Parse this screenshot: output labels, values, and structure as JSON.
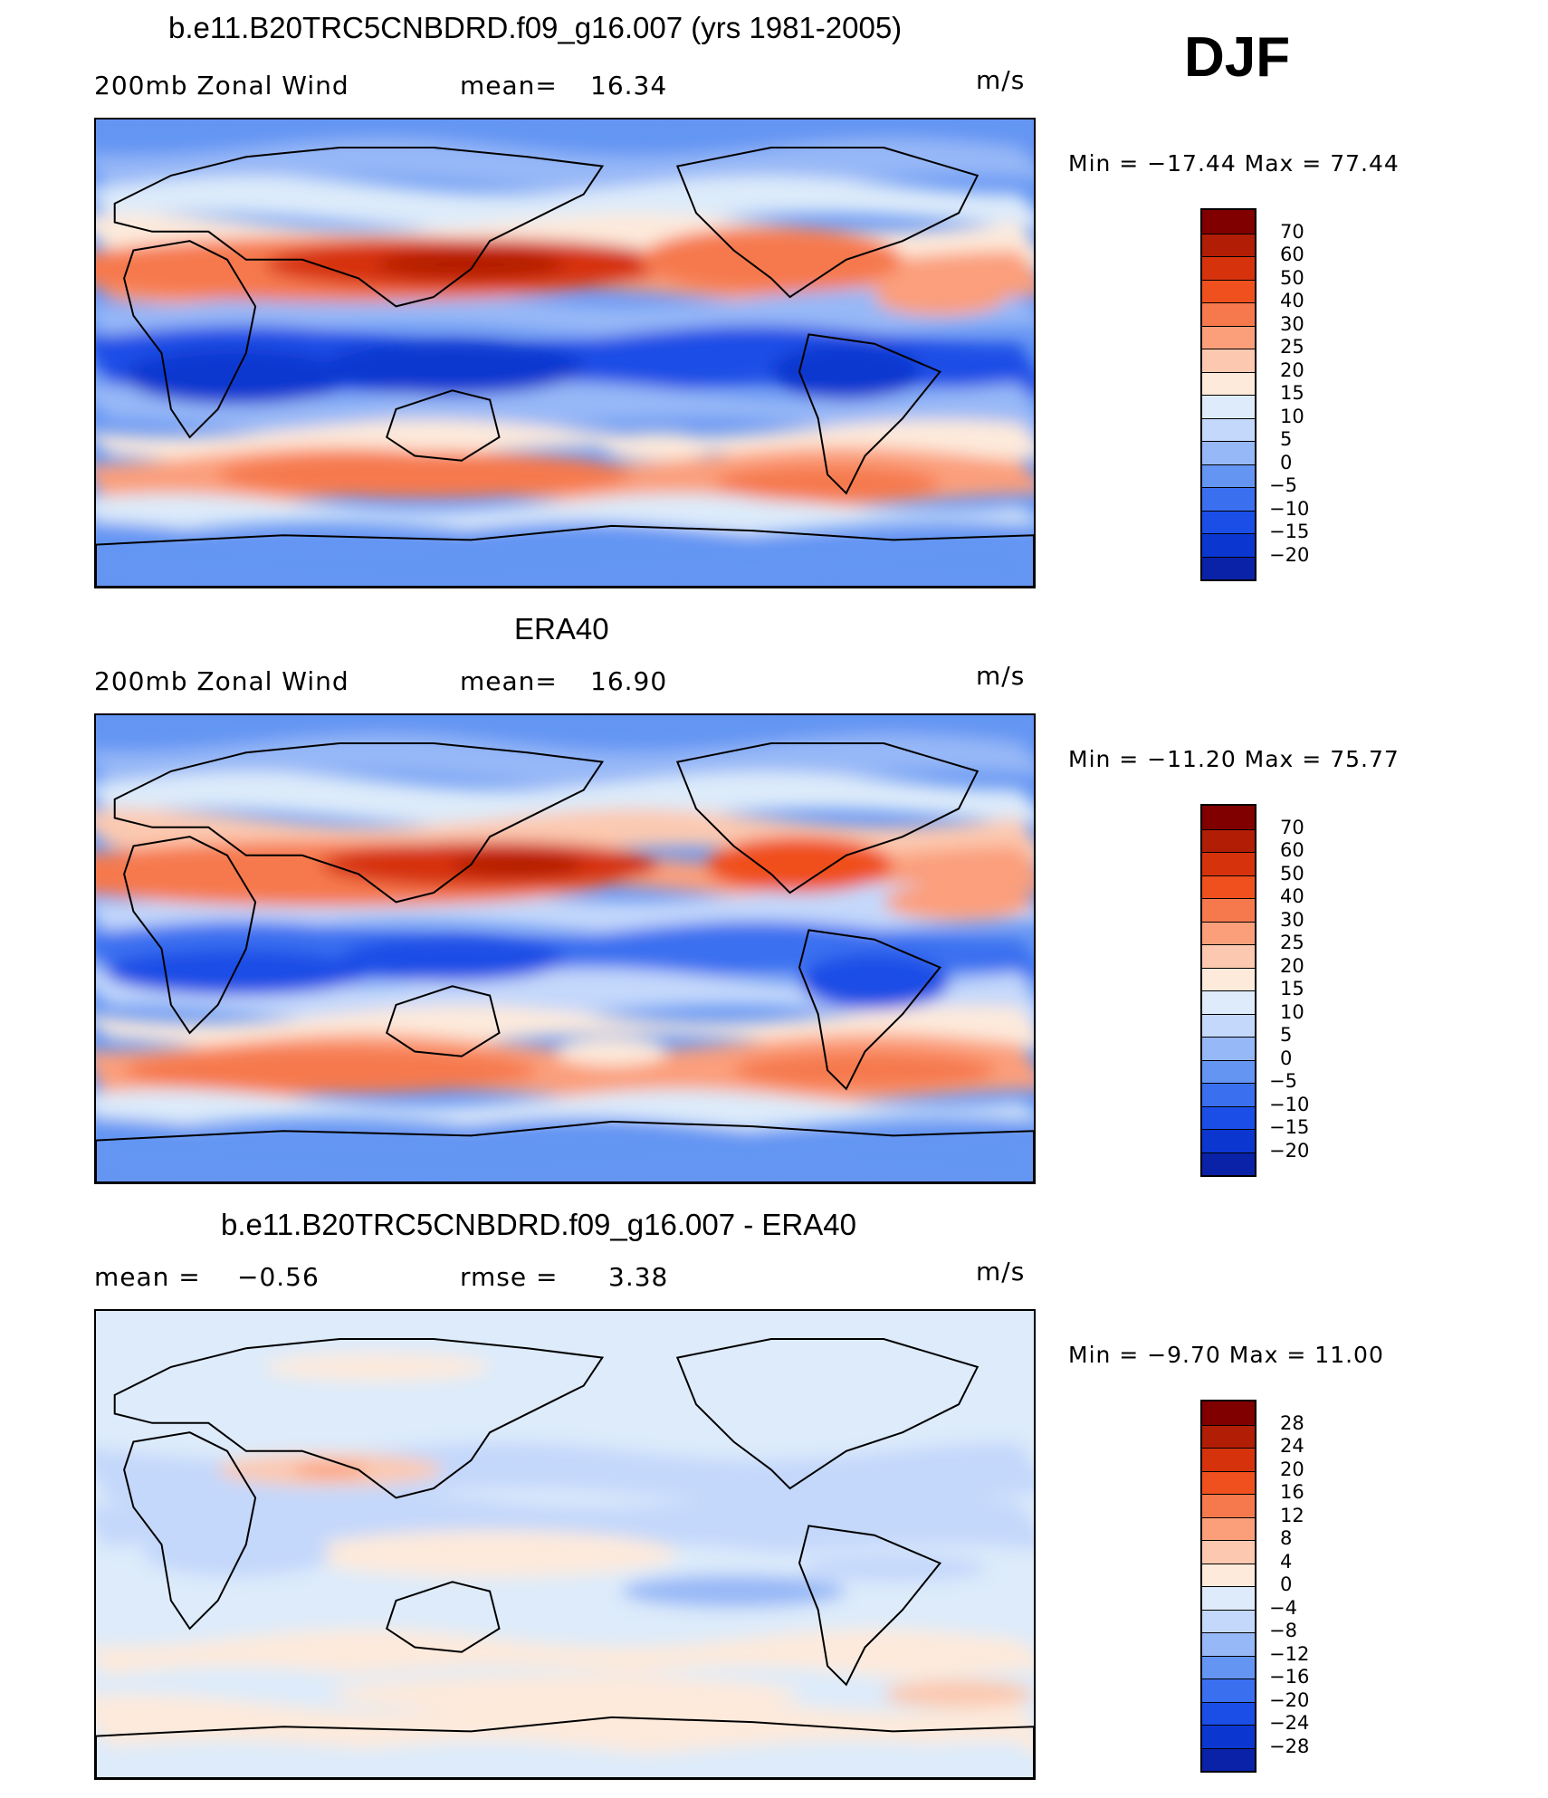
{
  "season": "DJF",
  "units": "m/s",
  "palette": {
    "scale": [
      "#00007f",
      "#0a22a8",
      "#0b37d0",
      "#1a4ee6",
      "#3a6ff0",
      "#6495f3",
      "#97b8f7",
      "#c4d8fb",
      "#ddebfa",
      "#fdeadb",
      "#fcc9b0",
      "#fb9f7b",
      "#f6794d",
      "#f0501d",
      "#d6330d",
      "#b21d05",
      "#800000"
    ],
    "land_outline": "#000000",
    "ocean_bg": "#c4d8fb"
  },
  "panels": [
    {
      "title": "b.e11.B20TRC5CNBDRD.f09_g16.007 (yrs 1981-2005)",
      "left_label": "200mb Zonal Wind",
      "stat_label": "mean=",
      "stat_value": "16.34",
      "units": "m/s",
      "minmax": "Min  =  −17.44  Max  =    77.44",
      "colorbar_labels": [
        "70",
        "60",
        "50",
        "40",
        "30",
        "25",
        "20",
        "15",
        "10",
        "5",
        "0",
        "−5",
        "−10",
        "−15",
        "−20"
      ],
      "kind": "model"
    },
    {
      "title": "ERA40",
      "left_label": "200mb Zonal Wind",
      "stat_label": "mean=",
      "stat_value": "16.90",
      "units": "m/s",
      "minmax": "Min  =  −11.20  Max  =    75.77",
      "colorbar_labels": [
        "70",
        "60",
        "50",
        "40",
        "30",
        "25",
        "20",
        "15",
        "10",
        "5",
        "0",
        "−5",
        "−10",
        "−15",
        "−20"
      ],
      "kind": "obs"
    },
    {
      "title": "b.e11.B20TRC5CNBDRD.f09_g16.007 - ERA40",
      "left_label": "mean  =",
      "left_value": "−0.56",
      "stat_label": "rmse  =",
      "stat_value": "3.38",
      "units": "m/s",
      "minmax": "Min  =    −9.70  Max  =    11.00",
      "colorbar_labels": [
        "28",
        "24",
        "20",
        "16",
        "12",
        "8",
        "4",
        "0",
        "−4",
        "−8",
        "−12",
        "−16",
        "−20",
        "−24",
        "−28"
      ],
      "kind": "diff"
    }
  ]
}
